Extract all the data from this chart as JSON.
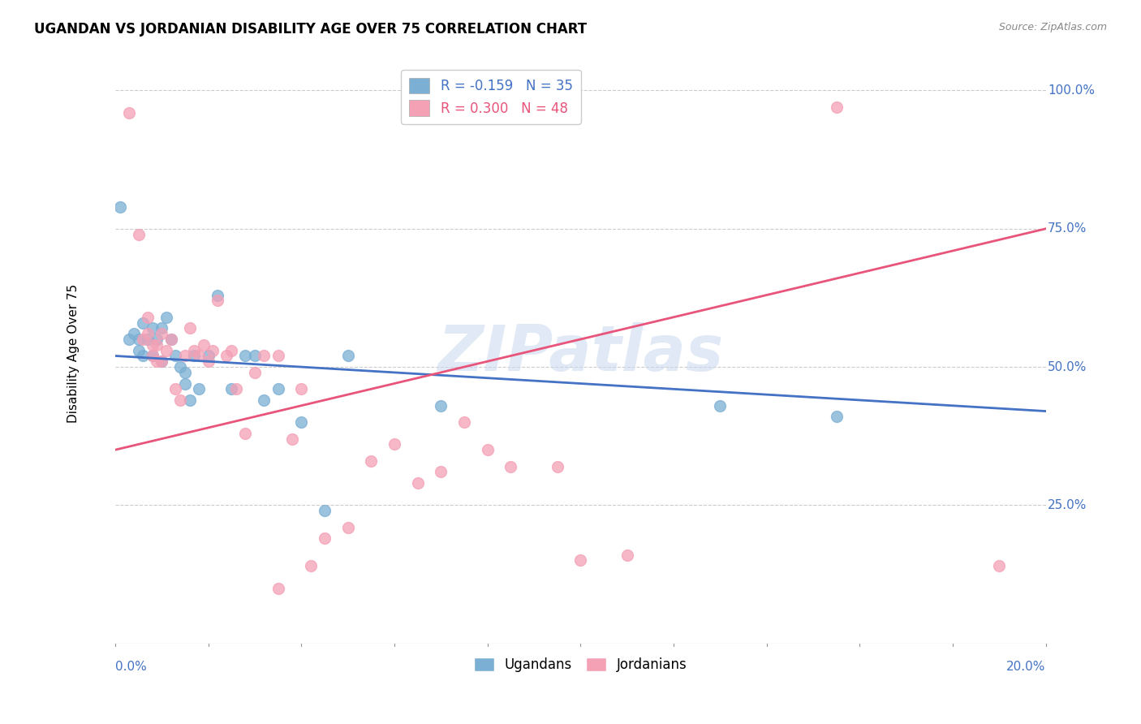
{
  "title": "UGANDAN VS JORDANIAN DISABILITY AGE OVER 75 CORRELATION CHART",
  "source": "Source: ZipAtlas.com",
  "xlabel_bottom_left": "0.0%",
  "xlabel_bottom_right": "20.0%",
  "ylabel": "Disability Age Over 75",
  "ytick_labels": [
    "100.0%",
    "75.0%",
    "50.0%",
    "25.0%"
  ],
  "ytick_values": [
    1.0,
    0.75,
    0.5,
    0.25
  ],
  "xmin": 0.0,
  "xmax": 0.2,
  "ymin": 0.0,
  "ymax": 1.05,
  "watermark": "ZIPatlas",
  "legend_ugandans": "R = -0.159   N = 35",
  "legend_jordanians": "R = 0.300   N = 48",
  "ugandan_color": "#7bafd4",
  "jordanian_color": "#f4a0b5",
  "ugandan_line_color": "#4472c4",
  "jordanian_line_color": "#e8547a",
  "ugandan_R": -0.159,
  "ugandan_N": 35,
  "jordanian_R": 0.3,
  "jordanian_N": 48,
  "ug_line_x0": 0.0,
  "ug_line_y0": 0.52,
  "ug_line_x1": 0.2,
  "ug_line_y1": 0.42,
  "jor_line_x0": 0.0,
  "jor_line_y0": 0.35,
  "jor_line_x1": 0.2,
  "jor_line_y1": 0.75,
  "ugandans_x": [
    0.001,
    0.003,
    0.004,
    0.005,
    0.005,
    0.006,
    0.006,
    0.007,
    0.008,
    0.008,
    0.009,
    0.01,
    0.01,
    0.011,
    0.012,
    0.013,
    0.014,
    0.015,
    0.015,
    0.016,
    0.017,
    0.018,
    0.02,
    0.022,
    0.025,
    0.028,
    0.03,
    0.032,
    0.035,
    0.04,
    0.045,
    0.05,
    0.07,
    0.13,
    0.155
  ],
  "ugandans_y": [
    0.79,
    0.55,
    0.56,
    0.55,
    0.53,
    0.58,
    0.52,
    0.55,
    0.57,
    0.52,
    0.55,
    0.57,
    0.51,
    0.59,
    0.55,
    0.52,
    0.5,
    0.49,
    0.47,
    0.44,
    0.52,
    0.46,
    0.52,
    0.63,
    0.46,
    0.52,
    0.52,
    0.44,
    0.46,
    0.4,
    0.24,
    0.52,
    0.43,
    0.43,
    0.41
  ],
  "jordanians_x": [
    0.003,
    0.005,
    0.006,
    0.007,
    0.007,
    0.008,
    0.008,
    0.009,
    0.009,
    0.01,
    0.01,
    0.011,
    0.012,
    0.013,
    0.014,
    0.015,
    0.016,
    0.017,
    0.018,
    0.019,
    0.02,
    0.021,
    0.022,
    0.024,
    0.025,
    0.026,
    0.028,
    0.03,
    0.032,
    0.035,
    0.038,
    0.04,
    0.042,
    0.045,
    0.05,
    0.055,
    0.06,
    0.065,
    0.07,
    0.075,
    0.08,
    0.085,
    0.095,
    0.1,
    0.11,
    0.035,
    0.19,
    0.155
  ],
  "jordanians_y": [
    0.96,
    0.74,
    0.55,
    0.59,
    0.56,
    0.54,
    0.52,
    0.54,
    0.51,
    0.56,
    0.51,
    0.53,
    0.55,
    0.46,
    0.44,
    0.52,
    0.57,
    0.53,
    0.52,
    0.54,
    0.51,
    0.53,
    0.62,
    0.52,
    0.53,
    0.46,
    0.38,
    0.49,
    0.52,
    0.52,
    0.37,
    0.46,
    0.14,
    0.19,
    0.21,
    0.33,
    0.36,
    0.29,
    0.31,
    0.4,
    0.35,
    0.32,
    0.32,
    0.15,
    0.16,
    0.1,
    0.14,
    0.97
  ]
}
